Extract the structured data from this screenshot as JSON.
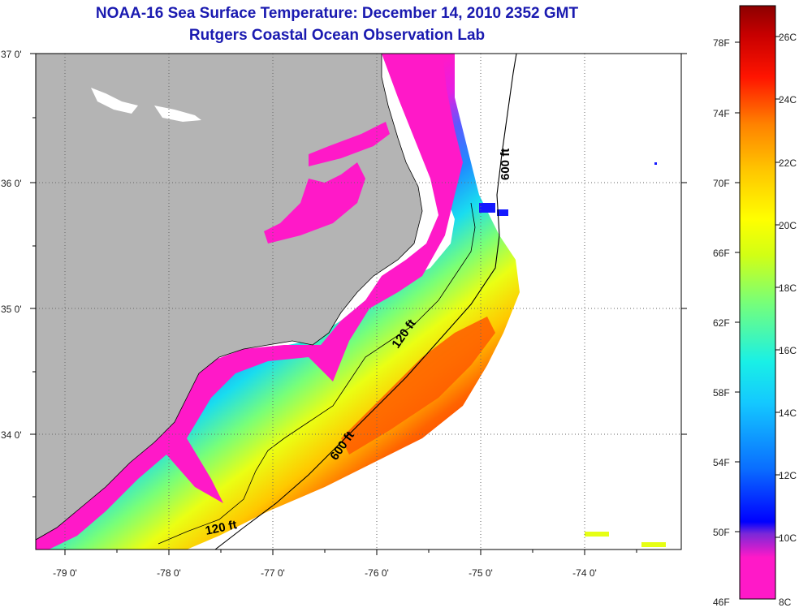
{
  "header": {
    "title": "NOAA-16 Sea Surface Temperature:  December 14, 2010 2352 GMT",
    "subtitle": "Rutgers Coastal Ocean Observation Lab"
  },
  "map": {
    "lat_labels": [
      "37 0'",
      "36 0'",
      "35 0'",
      "34 0'"
    ],
    "lon_labels": [
      "-79 0'",
      "-78 0'",
      "-77 0'",
      "-76 0'",
      "-75 0'",
      "-74 0'"
    ],
    "isobaths": [
      "600 ft",
      "120 ft",
      "600 ft",
      "120 ft"
    ],
    "colors": {
      "land": "#b4b4b4",
      "ocean_no_data": "#ffffff",
      "grid": "#666666"
    }
  },
  "colorbar": {
    "fahrenheit_labels": [
      "78F",
      "74F",
      "70F",
      "66F",
      "62F",
      "58F",
      "54F",
      "50F",
      "46F"
    ],
    "celsius_labels": [
      "26C",
      "24C",
      "22C",
      "20C",
      "18C",
      "16C",
      "14C",
      "12C",
      "10C",
      "8C"
    ],
    "colors": [
      "#ff19c8",
      "#9b28d2",
      "#1419ff",
      "#1e9bff",
      "#19e6e6",
      "#78ff78",
      "#e6ff14",
      "#ffb400",
      "#ff5a00",
      "#ff0000",
      "#8c0000"
    ]
  }
}
